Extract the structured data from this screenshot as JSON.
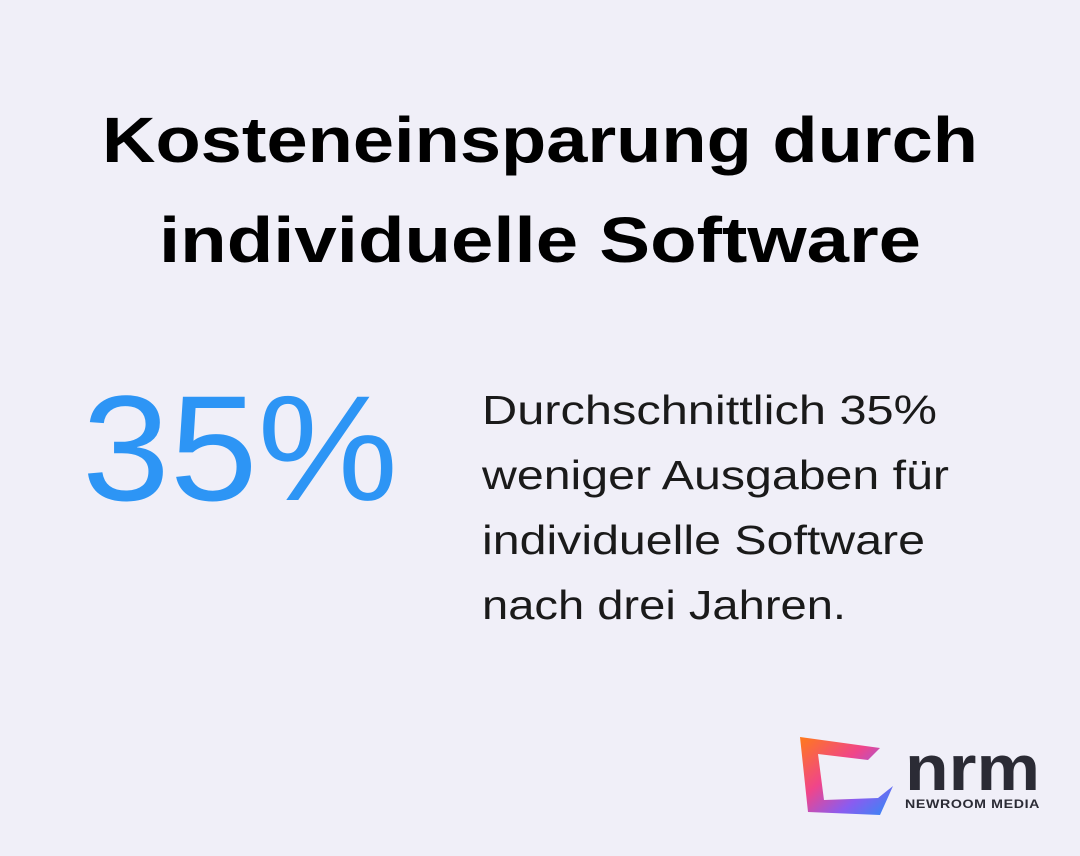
{
  "header": {
    "title_lines": [
      "Kosteneinsparung durch",
      "individuelle Software"
    ]
  },
  "stat": {
    "value": "35%",
    "description_lines": [
      "Durchschnittlich 35%",
      "weniger Ausgaben für",
      "individuelle Software",
      "nach drei Jahren."
    ]
  },
  "logo": {
    "name": "nrm",
    "tagline": "NEWROOM MEDIA"
  }
}
